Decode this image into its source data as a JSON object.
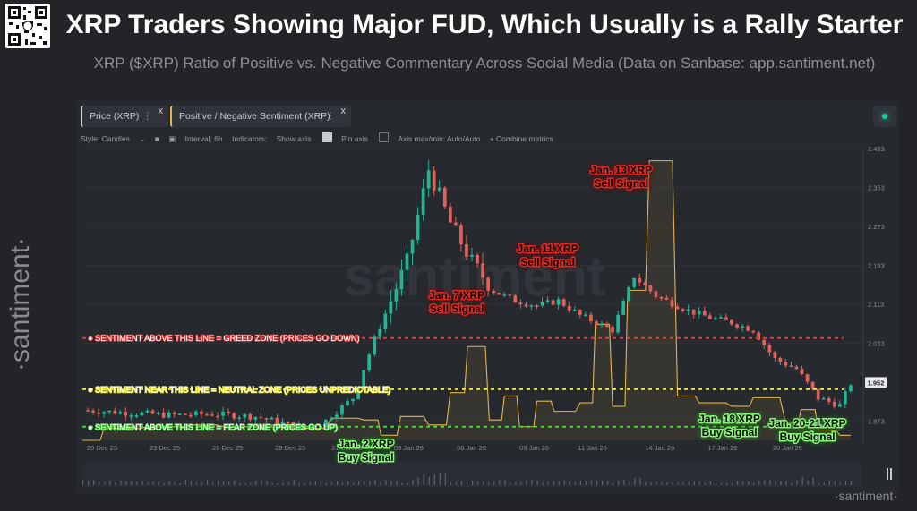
{
  "header": {
    "title": "XRP Traders Showing Major FUD, Which Usually is a Rally Starter",
    "subtitle": "XRP ($XRP) Ratio of Positive vs. Negative Commentary Across Social Media (Data on Sanbase: app.santiment.net)",
    "side_brand": "·santiment·"
  },
  "legend": {
    "price_label": "Price (XRP)",
    "sentiment_label": "Positive / Negative Sentiment (XRP)",
    "close_glyph": "x",
    "menu_glyph": "⋮"
  },
  "toolbar": {
    "style": "Style: Candles",
    "interval": "Interval: 6h",
    "indicators": "Indicators:",
    "show_axis": "Show axis",
    "pin_axis": "Pin axis",
    "axis_minmax": "Axis max/min: Auto/Auto",
    "combine": "+ Combine metrics"
  },
  "colors": {
    "up": "#20b594",
    "down": "#e0605c",
    "sentiment": "#e3b54a",
    "greed": "#e03a3a",
    "neutral": "#e8e23a",
    "fear": "#43d43a",
    "sell_label": "#e5261f",
    "buy_label": "#8cf57c"
  },
  "chart_data": {
    "type": "candlestick + line",
    "y_axis_ticks": [
      "2.433",
      "2.353",
      "2.273",
      "2.193",
      "2.113",
      "2.033",
      "1.952",
      "1.873"
    ],
    "ylim": [
      1.833,
      2.433
    ],
    "current_price_label": "1.952",
    "x_tick_labels": [
      "20 Dec 25",
      "23 Dec 25",
      "26 Dec 25",
      "29 Dec 25",
      "31 Dec 25",
      "03 Jan 26",
      "06 Jan 26",
      "09 Jan 26",
      "11 Jan 26",
      "14 Jan 26",
      "17 Jan 26",
      "20 Jan 26"
    ],
    "price_keyframes": [
      {
        "d": 0,
        "p": 1.895
      },
      {
        "d": 2,
        "p": 1.89
      },
      {
        "d": 4,
        "p": 1.885
      },
      {
        "d": 6,
        "p": 1.887
      },
      {
        "d": 8,
        "p": 1.882
      },
      {
        "d": 10,
        "p": 1.86
      },
      {
        "d": 11,
        "p": 1.865
      },
      {
        "d": 12.5,
        "p": 1.92
      },
      {
        "d": 13.5,
        "p": 2.04
      },
      {
        "d": 15,
        "p": 2.2
      },
      {
        "d": 16,
        "p": 2.39
      },
      {
        "d": 17,
        "p": 2.28
      },
      {
        "d": 18,
        "p": 2.2
      },
      {
        "d": 19,
        "p": 2.14
      },
      {
        "d": 20,
        "p": 2.12
      },
      {
        "d": 21,
        "p": 2.11
      },
      {
        "d": 22,
        "p": 2.12
      },
      {
        "d": 23,
        "p": 2.09
      },
      {
        "d": 24,
        "p": 2.07
      },
      {
        "d": 24.5,
        "p": 2.06
      },
      {
        "d": 25.5,
        "p": 2.17
      },
      {
        "d": 26.5,
        "p": 2.13
      },
      {
        "d": 28,
        "p": 2.1
      },
      {
        "d": 29,
        "p": 2.085
      },
      {
        "d": 30,
        "p": 2.075
      },
      {
        "d": 31,
        "p": 2.06
      },
      {
        "d": 32,
        "p": 2.0
      },
      {
        "d": 33,
        "p": 1.98
      },
      {
        "d": 34,
        "p": 1.92
      },
      {
        "d": 35,
        "p": 1.905
      },
      {
        "d": 35.5,
        "p": 1.95
      }
    ],
    "sentiment_steps": [
      {
        "d": 0,
        "v": 1.6
      },
      {
        "d": 1,
        "v": 1.95
      },
      {
        "d": 3,
        "v": 2.0
      },
      {
        "d": 5,
        "v": 2.05
      },
      {
        "d": 6.5,
        "v": 2.0
      },
      {
        "d": 8,
        "v": 2.05
      },
      {
        "d": 10,
        "v": 1.95
      },
      {
        "d": 11.5,
        "v": 2.25
      },
      {
        "d": 13,
        "v": 2.2
      },
      {
        "d": 13.8,
        "v": 1.75
      },
      {
        "d": 14.7,
        "v": 2.3
      },
      {
        "d": 16,
        "v": 2.05
      },
      {
        "d": 17,
        "v": 3.0
      },
      {
        "d": 17.8,
        "v": 4.35
      },
      {
        "d": 18.8,
        "v": 2.2
      },
      {
        "d": 19.5,
        "v": 2.9
      },
      {
        "d": 20.2,
        "v": 2.0
      },
      {
        "d": 21,
        "v": 2.75
      },
      {
        "d": 21.8,
        "v": 2.45
      },
      {
        "d": 23,
        "v": 2.7
      },
      {
        "d": 23.7,
        "v": 5.0
      },
      {
        "d": 24.5,
        "v": 2.6
      },
      {
        "d": 25.2,
        "v": 6.0
      },
      {
        "d": 26.2,
        "v": 9.8
      },
      {
        "d": 27.5,
        "v": 2.9
      },
      {
        "d": 28.5,
        "v": 2.7
      },
      {
        "d": 30,
        "v": 2.6
      },
      {
        "d": 31,
        "v": 2.85
      },
      {
        "d": 32.5,
        "v": 2.1
      },
      {
        "d": 33.2,
        "v": 2.5
      },
      {
        "d": 34,
        "v": 1.9
      },
      {
        "d": 35,
        "v": 1.75
      }
    ],
    "reference_lines": [
      {
        "label": "SENTIMENT ABOVE THIS LINE = GREED ZONE (PRICES GO DOWN)",
        "zone": "greed",
        "level": 4.6
      },
      {
        "label": "SENTIMENT NEAR THIS LINE = NEUTRAL ZONE (PRICES UNPREDICTABLE)",
        "zone": "neutral",
        "level": 3.1
      },
      {
        "label": "SENTIMENT ABOVE THIS LINE = FEAR ZONE (PRICES GO UP)",
        "zone": "fear",
        "level": 2.0
      }
    ],
    "annotations": [
      {
        "line1": "Jan. 2 XRP",
        "line2": "Buy Signal",
        "kind": "buy",
        "d": 13.1
      },
      {
        "line1": "Jan. 7 XRP",
        "line2": "Sell Signal",
        "kind": "sell",
        "d": 17.3
      },
      {
        "line1": "Jan. 11 XRP",
        "line2": "Sell Signal",
        "kind": "sell",
        "d": 21.5
      },
      {
        "line1": "Jan. 13 XRP",
        "line2": "Sell Signal",
        "kind": "sell",
        "d": 24.9
      },
      {
        "line1": "Jan. 18 XRP",
        "line2": "Buy Signal",
        "kind": "buy",
        "d": 29.9
      },
      {
        "line1": "Jan. 20-21 XRP",
        "line2": "Buy Signal",
        "kind": "buy",
        "d": 33.5
      }
    ],
    "watermark": "santiment",
    "brand_footer": "·santiment·"
  }
}
